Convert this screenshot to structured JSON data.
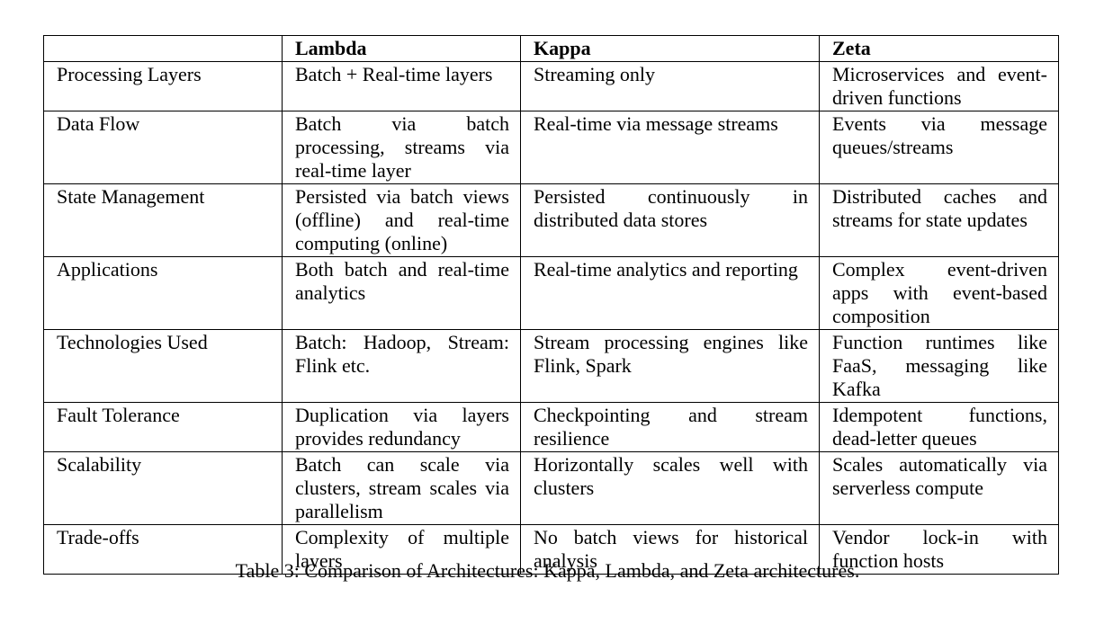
{
  "table": {
    "columns": [
      "",
      "Lambda",
      "Kappa",
      "Zeta"
    ],
    "rows": [
      {
        "label": "Processing Layers",
        "cells": [
          "Batch + Real-time layers",
          "Streaming only",
          "Microservices and event-driven functions"
        ]
      },
      {
        "label": "Data Flow",
        "cells": [
          "Batch via batch processing, streams via real-time layer",
          "Real-time via message streams",
          "Events via message queues/streams"
        ]
      },
      {
        "label": "State Management",
        "cells": [
          "Persisted via batch views (offline) and real-time computing (online)",
          "Persisted continuously in distributed data stores",
          "Distributed caches and streams for state updates"
        ]
      },
      {
        "label": "Applications",
        "cells": [
          "Both batch and real-time analytics",
          "Real-time analytics and reporting",
          "Complex event-driven apps with event-based composition"
        ]
      },
      {
        "label": "Technologies Used",
        "cells": [
          "Batch: Hadoop, Stream: Flink etc.",
          "Stream processing engines like Flink, Spark",
          "Function runtimes like FaaS, messaging like Kafka"
        ]
      },
      {
        "label": "Fault Tolerance",
        "cells": [
          "Duplication via layers provides redundancy",
          "Checkpointing and stream resilience",
          "Idempotent functions, dead-letter queues"
        ]
      },
      {
        "label": "Scalability",
        "cells": [
          "Batch can scale via clusters, stream scales via parallelism",
          "Horizontally scales well with clusters",
          "Scales automatically via serverless compute"
        ]
      },
      {
        "label": "Trade-offs",
        "cells": [
          "Complexity of multiple layers",
          "No batch views for historical analysis",
          "Vendor lock-in with function hosts"
        ]
      }
    ]
  },
  "caption": "Table 3: Comparison of Architectures: Kappa, Lambda, and Zeta architectures."
}
